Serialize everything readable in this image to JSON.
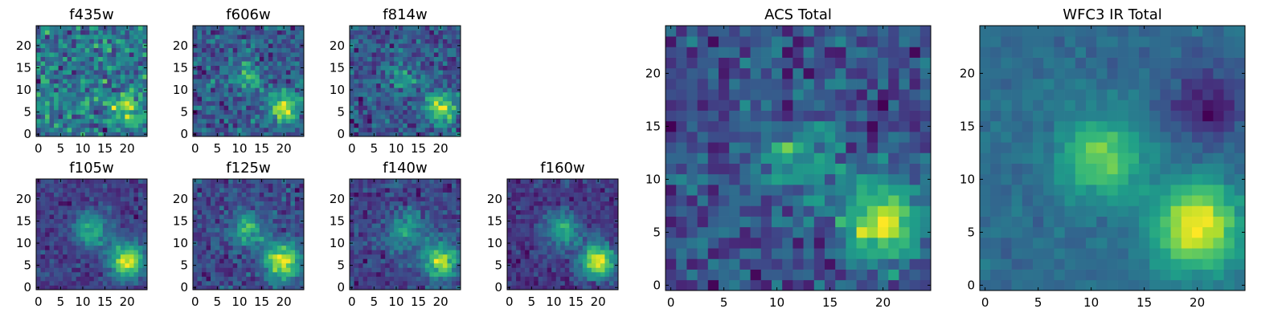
{
  "chart_data": [
    {
      "type": "heatmap",
      "title": "f435w",
      "x_ticks": [
        0,
        5,
        10,
        15,
        20
      ],
      "y_ticks": [
        0,
        5,
        10,
        15,
        20
      ],
      "xlim": [
        -0.5,
        24.5
      ],
      "ylim": [
        -0.5,
        24.5
      ],
      "grid_size": 25,
      "seed": 11,
      "noise": 0.55,
      "contrast": 1.0,
      "blobs": [
        {
          "x": 20,
          "y": 6,
          "sigma": 2.4,
          "amp": 0.5
        }
      ]
    },
    {
      "type": "heatmap",
      "title": "f606w",
      "x_ticks": [
        0,
        5,
        10,
        15,
        20
      ],
      "y_ticks": [
        0,
        5,
        10,
        15,
        20
      ],
      "xlim": [
        -0.5,
        24.5
      ],
      "ylim": [
        -0.5,
        24.5
      ],
      "grid_size": 25,
      "seed": 12,
      "noise": 0.5,
      "contrast": 1.0,
      "blobs": [
        {
          "x": 20,
          "y": 6,
          "sigma": 2.4,
          "amp": 0.9
        },
        {
          "x": 12,
          "y": 13,
          "sigma": 2.5,
          "amp": 0.4
        }
      ]
    },
    {
      "type": "heatmap",
      "title": "f814w",
      "x_ticks": [
        0,
        5,
        10,
        15,
        20
      ],
      "y_ticks": [
        0,
        5,
        10,
        15,
        20
      ],
      "xlim": [
        -0.5,
        24.5
      ],
      "ylim": [
        -0.5,
        24.5
      ],
      "grid_size": 25,
      "seed": 13,
      "noise": 0.5,
      "contrast": 1.0,
      "blobs": [
        {
          "x": 20,
          "y": 6,
          "sigma": 2.3,
          "amp": 1.1
        },
        {
          "x": 12,
          "y": 13,
          "sigma": 2.5,
          "amp": 0.4
        }
      ]
    },
    {
      "type": "heatmap",
      "title": "f105w",
      "x_ticks": [
        0,
        5,
        10,
        15,
        20
      ],
      "y_ticks": [
        0,
        5,
        10,
        15,
        20
      ],
      "xlim": [
        -0.5,
        24.5
      ],
      "ylim": [
        -0.5,
        24.5
      ],
      "grid_size": 25,
      "seed": 14,
      "noise": 0.3,
      "contrast": 1.0,
      "blobs": [
        {
          "x": 20,
          "y": 6,
          "sigma": 2.8,
          "amp": 1.2
        },
        {
          "x": 12,
          "y": 13,
          "sigma": 2.8,
          "amp": 0.7
        }
      ]
    },
    {
      "type": "heatmap",
      "title": "f125w",
      "x_ticks": [
        0,
        5,
        10,
        15,
        20
      ],
      "y_ticks": [
        0,
        5,
        10,
        15,
        20
      ],
      "xlim": [
        -0.5,
        24.5
      ],
      "ylim": [
        -0.5,
        24.5
      ],
      "grid_size": 25,
      "seed": 15,
      "noise": 0.35,
      "contrast": 1.0,
      "blobs": [
        {
          "x": 20,
          "y": 6,
          "sigma": 2.8,
          "amp": 1.0
        },
        {
          "x": 12,
          "y": 13,
          "sigma": 2.8,
          "amp": 0.6
        }
      ]
    },
    {
      "type": "heatmap",
      "title": "f140w",
      "x_ticks": [
        0,
        5,
        10,
        15,
        20
      ],
      "y_ticks": [
        0,
        5,
        10,
        15,
        20
      ],
      "xlim": [
        -0.5,
        24.5
      ],
      "ylim": [
        -0.5,
        24.5
      ],
      "grid_size": 25,
      "seed": 16,
      "noise": 0.35,
      "contrast": 1.0,
      "blobs": [
        {
          "x": 20,
          "y": 6,
          "sigma": 2.8,
          "amp": 1.0
        },
        {
          "x": 12,
          "y": 13,
          "sigma": 2.8,
          "amp": 0.6
        }
      ]
    },
    {
      "type": "heatmap",
      "title": "f160w",
      "x_ticks": [
        0,
        5,
        10,
        15,
        20
      ],
      "y_ticks": [
        0,
        5,
        10,
        15,
        20
      ],
      "xlim": [
        -0.5,
        24.5
      ],
      "ylim": [
        -0.5,
        24.5
      ],
      "grid_size": 25,
      "seed": 17,
      "noise": 0.3,
      "contrast": 1.0,
      "blobs": [
        {
          "x": 20,
          "y": 6,
          "sigma": 2.6,
          "amp": 1.3
        },
        {
          "x": 12,
          "y": 13,
          "sigma": 2.8,
          "amp": 0.7
        }
      ]
    },
    {
      "type": "heatmap",
      "title": "ACS Total",
      "x_ticks": [
        0,
        5,
        10,
        15,
        20
      ],
      "y_ticks": [
        0,
        5,
        10,
        15,
        20
      ],
      "xlim": [
        -0.5,
        24.5
      ],
      "ylim": [
        -0.5,
        24.5
      ],
      "grid_size": 25,
      "seed": 18,
      "noise": 0.45,
      "contrast": 1.0,
      "blobs": [
        {
          "x": 20,
          "y": 6,
          "sigma": 2.6,
          "amp": 1.0
        },
        {
          "x": 12,
          "y": 12,
          "sigma": 2.6,
          "amp": 0.5
        }
      ]
    },
    {
      "type": "heatmap",
      "title": "WFC3 IR Total",
      "x_ticks": [
        0,
        5,
        10,
        15,
        20
      ],
      "y_ticks": [
        0,
        5,
        10,
        15,
        20
      ],
      "xlim": [
        -0.5,
        24.5
      ],
      "ylim": [
        -0.5,
        24.5
      ],
      "grid_size": 25,
      "seed": 19,
      "noise": 0.22,
      "contrast": 1.0,
      "blobs": [
        {
          "x": 20,
          "y": 5.5,
          "sigma": 2.8,
          "amp": 1.3
        },
        {
          "x": 11,
          "y": 12,
          "sigma": 2.7,
          "amp": 0.85
        },
        {
          "x": 21,
          "y": 17,
          "sigma": 2.5,
          "amp": -0.6
        }
      ]
    }
  ],
  "colormap": [
    "#440154",
    "#482878",
    "#3e4989",
    "#31688e",
    "#26828e",
    "#1f9e89",
    "#35b779",
    "#6ece58",
    "#b5de2b",
    "#fde725"
  ]
}
